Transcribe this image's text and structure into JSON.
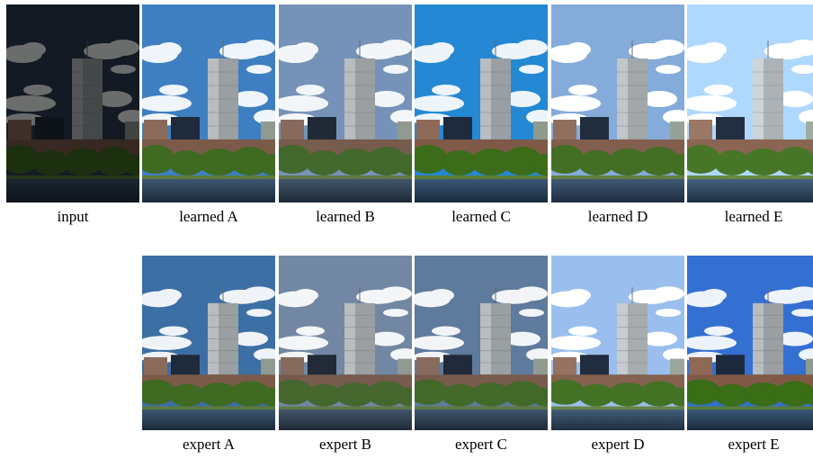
{
  "rows": [
    [
      "input",
      "learned A",
      "learned B",
      "learned C",
      "learned D",
      "learned E"
    ],
    [
      "expert A",
      "expert B",
      "expert C",
      "expert D",
      "expert E"
    ]
  ]
}
